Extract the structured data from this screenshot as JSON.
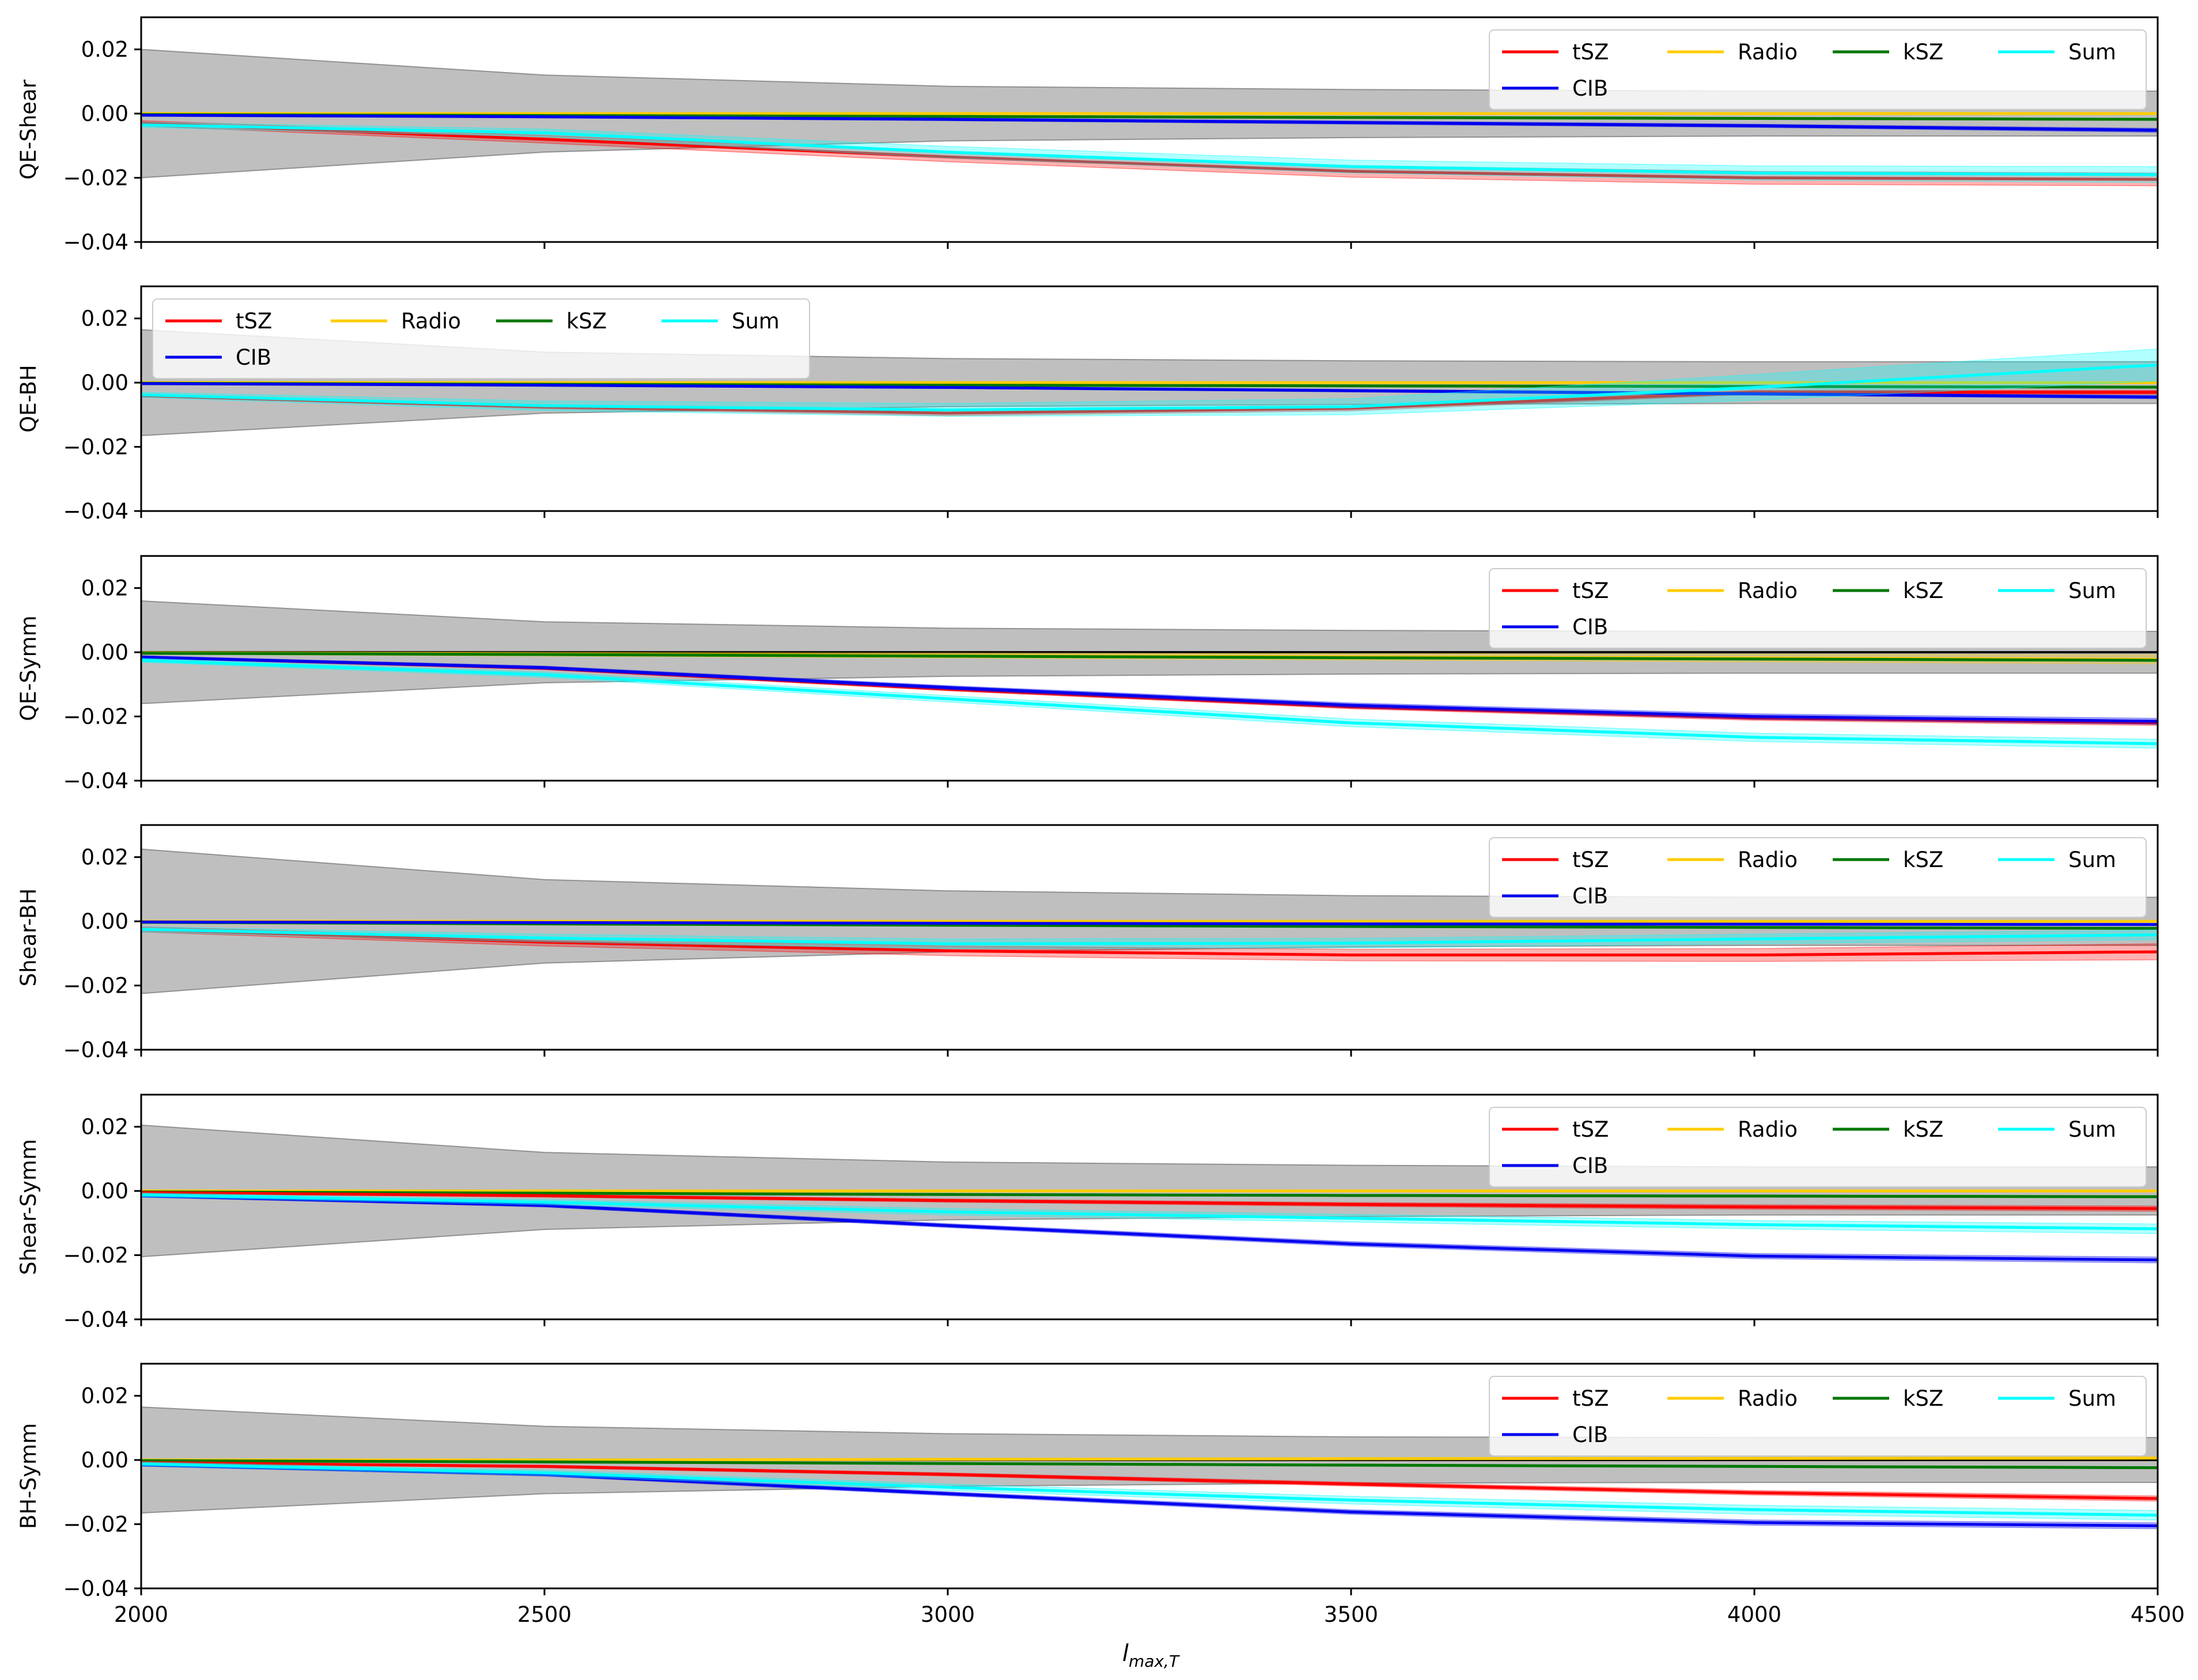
{
  "figure": {
    "xlabel": "l",
    "xlabel_sub": "max,T"
  },
  "chart_data": [
    {
      "type": "line",
      "ylabel": "QE-Shear",
      "x": [
        2000,
        2500,
        3000,
        3500,
        4000,
        4500
      ],
      "xlim": [
        2000,
        4500
      ],
      "ylim": [
        -0.04,
        0.03
      ],
      "xticks": [
        "2000",
        "2500",
        "3000",
        "3500",
        "4000",
        "4500"
      ],
      "yticks": [
        "0.02",
        "0.00",
        "−0.02",
        "−0.04"
      ],
      "ytick_values": [
        0.02,
        0.0,
        -0.02,
        -0.04
      ],
      "legend_position": "upper right",
      "error_band": [
        0.02,
        0.012,
        0.0085,
        0.0075,
        0.007,
        0.007
      ],
      "series": [
        {
          "name": "tSZ",
          "color": "#ff0000",
          "values": [
            -0.003,
            -0.008,
            -0.0135,
            -0.018,
            -0.02,
            -0.0205
          ],
          "band": [
            0.0008,
            0.0012,
            0.0015,
            0.0018,
            0.002,
            0.002
          ]
        },
        {
          "name": "CIB",
          "color": "#0000ee",
          "values": [
            -0.0005,
            -0.001,
            -0.0018,
            -0.0028,
            -0.0038,
            -0.0052
          ],
          "band": [
            0.0002,
            0.0003,
            0.0004,
            0.0005,
            0.0005,
            0.0006
          ]
        },
        {
          "name": "Radio",
          "color": "#ffcc00",
          "values": [
            0.0,
            0.0,
            0.0,
            0.0,
            0.0,
            0.0
          ],
          "band": [
            0.0002,
            0.0002,
            0.0002,
            0.0002,
            0.0002,
            0.0002
          ]
        },
        {
          "name": "kSZ",
          "color": "#007700",
          "values": [
            -0.0003,
            -0.0006,
            -0.0009,
            -0.0012,
            -0.0015,
            -0.0018
          ],
          "band": [
            0.0001,
            0.0001,
            0.0001,
            0.0001,
            0.0001,
            0.0001
          ]
        },
        {
          "name": "Sum",
          "color": "#00ffff",
          "values": [
            -0.0035,
            -0.006,
            -0.012,
            -0.0165,
            -0.0185,
            -0.019
          ],
          "band": [
            0.0008,
            0.0012,
            0.0018,
            0.002,
            0.0022,
            0.0025
          ]
        }
      ]
    },
    {
      "type": "line",
      "ylabel": "QE-BH",
      "x": [
        2000,
        2500,
        3000,
        3500,
        4000,
        4500
      ],
      "xlim": [
        2000,
        4500
      ],
      "ylim": [
        -0.04,
        0.03
      ],
      "xticks": [
        "2000",
        "2500",
        "3000",
        "3500",
        "4000",
        "4500"
      ],
      "yticks": [
        "0.02",
        "0.00",
        "−0.02",
        "−0.04"
      ],
      "ytick_values": [
        0.02,
        0.0,
        -0.02,
        -0.04
      ],
      "legend_position": "upper left",
      "error_band": [
        0.0165,
        0.0095,
        0.0075,
        0.0068,
        0.0065,
        0.0065
      ],
      "series": [
        {
          "name": "tSZ",
          "color": "#ff0000",
          "values": [
            -0.004,
            -0.0075,
            -0.0095,
            -0.008,
            -0.003,
            -0.003
          ],
          "band": [
            0.0004,
            0.0006,
            0.0008,
            0.0008,
            0.0006,
            0.0006
          ]
        },
        {
          "name": "CIB",
          "color": "#0000ee",
          "values": [
            -0.0003,
            -0.0008,
            -0.0015,
            -0.0025,
            -0.0035,
            -0.0045
          ],
          "band": [
            0.0002,
            0.0003,
            0.0003,
            0.0004,
            0.0004,
            0.0005
          ]
        },
        {
          "name": "Radio",
          "color": "#ffcc00",
          "values": [
            0.0,
            0.0,
            0.0,
            0.0,
            0.0,
            0.0
          ],
          "band": [
            0.0002,
            0.0002,
            0.0002,
            0.0002,
            0.0002,
            0.0002
          ]
        },
        {
          "name": "kSZ",
          "color": "#007700",
          "values": [
            -0.0002,
            -0.0005,
            -0.0008,
            -0.001,
            -0.0012,
            -0.0014
          ],
          "band": [
            0.0001,
            0.0001,
            0.0001,
            0.0001,
            0.0001,
            0.0001
          ]
        },
        {
          "name": "Sum",
          "color": "#00ffff",
          "values": [
            -0.0038,
            -0.0072,
            -0.0085,
            -0.0075,
            -0.0015,
            0.0055
          ],
          "band": [
            0.0008,
            0.0015,
            0.002,
            0.0025,
            0.004,
            0.005
          ]
        }
      ]
    },
    {
      "type": "line",
      "ylabel": "QE-Symm",
      "x": [
        2000,
        2500,
        3000,
        3500,
        4000,
        4500
      ],
      "xlim": [
        2000,
        4500
      ],
      "ylim": [
        -0.04,
        0.03
      ],
      "xticks": [
        "2000",
        "2500",
        "3000",
        "3500",
        "4000",
        "4500"
      ],
      "yticks": [
        "0.02",
        "0.00",
        "−0.02",
        "−0.04"
      ],
      "ytick_values": [
        0.02,
        0.0,
        -0.02,
        -0.04
      ],
      "legend_position": "upper right",
      "error_band": [
        0.016,
        0.0095,
        0.0075,
        0.0068,
        0.0065,
        0.0065
      ],
      "series": [
        {
          "name": "tSZ",
          "color": "#ff0000",
          "values": [
            -0.0015,
            -0.005,
            -0.0115,
            -0.017,
            -0.0205,
            -0.022
          ],
          "band": [
            0.0003,
            0.0004,
            0.0005,
            0.0006,
            0.0007,
            0.0008
          ]
        },
        {
          "name": "CIB",
          "color": "#0000ee",
          "values": [
            -0.0015,
            -0.0048,
            -0.011,
            -0.0165,
            -0.02,
            -0.0215
          ],
          "band": [
            0.0004,
            0.0005,
            0.0006,
            0.0007,
            0.0008,
            0.0009
          ]
        },
        {
          "name": "Radio",
          "color": "#ffcc00",
          "values": [
            -0.0002,
            -0.0006,
            -0.001,
            -0.0014,
            -0.0018,
            -0.0022
          ],
          "band": [
            0.0004,
            0.0006,
            0.0008,
            0.001,
            0.0012,
            0.0014
          ]
        },
        {
          "name": "kSZ",
          "color": "#007700",
          "values": [
            -0.0003,
            -0.0007,
            -0.0012,
            -0.0017,
            -0.0021,
            -0.0025
          ],
          "band": [
            0.0001,
            0.0001,
            0.0001,
            0.0001,
            0.0001,
            0.0001
          ]
        },
        {
          "name": "Sum",
          "color": "#00ffff",
          "values": [
            -0.0025,
            -0.007,
            -0.0145,
            -0.022,
            -0.0265,
            -0.0285
          ],
          "band": [
            0.0006,
            0.0008,
            0.001,
            0.0012,
            0.0013,
            0.0014
          ]
        }
      ]
    },
    {
      "type": "line",
      "ylabel": "Shear-BH",
      "x": [
        2000,
        2500,
        3000,
        3500,
        4000,
        4500
      ],
      "xlim": [
        2000,
        4500
      ],
      "ylim": [
        -0.04,
        0.03
      ],
      "xticks": [
        "2000",
        "2500",
        "3000",
        "3500",
        "4000",
        "4500"
      ],
      "yticks": [
        "0.02",
        "0.00",
        "−0.02",
        "−0.04"
      ],
      "ytick_values": [
        0.02,
        0.0,
        -0.02,
        -0.04
      ],
      "legend_position": "upper right",
      "error_band": [
        0.0225,
        0.013,
        0.0095,
        0.008,
        0.0075,
        0.0075
      ],
      "series": [
        {
          "name": "tSZ",
          "color": "#ff0000",
          "values": [
            -0.0025,
            -0.0065,
            -0.0092,
            -0.0105,
            -0.0105,
            -0.0095
          ],
          "band": [
            0.0008,
            0.0012,
            0.0015,
            0.0018,
            0.002,
            0.0025
          ]
        },
        {
          "name": "CIB",
          "color": "#0000ee",
          "values": [
            -0.0002,
            -0.0004,
            -0.0006,
            -0.0008,
            -0.0009,
            -0.001
          ],
          "band": [
            0.0001,
            0.0001,
            0.0001,
            0.0001,
            0.0001,
            0.0001
          ]
        },
        {
          "name": "Radio",
          "color": "#ffcc00",
          "values": [
            0.0,
            0.0,
            0.0,
            0.0,
            0.0,
            0.0
          ],
          "band": [
            0.0002,
            0.0002,
            0.0002,
            0.0002,
            0.0002,
            0.0002
          ]
        },
        {
          "name": "kSZ",
          "color": "#007700",
          "values": [
            -0.0003,
            -0.0008,
            -0.0012,
            -0.0016,
            -0.0019,
            -0.0022
          ],
          "band": [
            0.0001,
            0.0001,
            0.0001,
            0.0001,
            0.0001,
            0.0001
          ]
        },
        {
          "name": "Sum",
          "color": "#00ffff",
          "values": [
            -0.0025,
            -0.0052,
            -0.007,
            -0.0068,
            -0.0055,
            -0.0042
          ],
          "band": [
            0.0008,
            0.0012,
            0.0015,
            0.0015,
            0.0015,
            0.0015
          ]
        }
      ]
    },
    {
      "type": "line",
      "ylabel": "Shear-Symm",
      "x": [
        2000,
        2500,
        3000,
        3500,
        4000,
        4500
      ],
      "xlim": [
        2000,
        4500
      ],
      "ylim": [
        -0.04,
        0.03
      ],
      "xticks": [
        "2000",
        "2500",
        "3000",
        "3500",
        "4000",
        "4500"
      ],
      "yticks": [
        "0.02",
        "0.00",
        "−0.02",
        "−0.04"
      ],
      "ytick_values": [
        0.02,
        0.0,
        -0.02,
        -0.04
      ],
      "legend_position": "upper right",
      "error_band": [
        0.0205,
        0.012,
        0.009,
        0.008,
        0.0075,
        0.0075
      ],
      "series": [
        {
          "name": "tSZ",
          "color": "#ff0000",
          "values": [
            -0.0005,
            -0.0015,
            -0.003,
            -0.0042,
            -0.005,
            -0.0055
          ],
          "band": [
            0.0003,
            0.0004,
            0.0005,
            0.0006,
            0.0007,
            0.0008
          ]
        },
        {
          "name": "CIB",
          "color": "#0000ee",
          "values": [
            -0.0015,
            -0.0045,
            -0.0108,
            -0.0165,
            -0.0203,
            -0.0215
          ],
          "band": [
            0.0004,
            0.0005,
            0.0006,
            0.0007,
            0.0008,
            0.0009
          ]
        },
        {
          "name": "Radio",
          "color": "#ffcc00",
          "values": [
            0.0,
            0.0,
            0.0,
            0.0,
            0.0,
            0.0
          ],
          "band": [
            0.0002,
            0.0002,
            0.0002,
            0.0002,
            0.0002,
            0.0002
          ]
        },
        {
          "name": "kSZ",
          "color": "#007700",
          "values": [
            -0.0003,
            -0.0007,
            -0.0011,
            -0.0014,
            -0.0016,
            -0.0018
          ],
          "band": [
            0.0001,
            0.0001,
            0.0001,
            0.0001,
            0.0001,
            0.0001
          ]
        },
        {
          "name": "Sum",
          "color": "#00ffff",
          "values": [
            -0.0012,
            -0.0035,
            -0.0065,
            -0.0085,
            -0.0105,
            -0.0118
          ],
          "band": [
            0.0006,
            0.0008,
            0.001,
            0.0012,
            0.0013,
            0.0015
          ]
        }
      ]
    },
    {
      "type": "line",
      "ylabel": "BH-Symm",
      "x": [
        2000,
        2500,
        3000,
        3500,
        4000,
        4500
      ],
      "xlim": [
        2000,
        4500
      ],
      "ylim": [
        -0.04,
        0.03
      ],
      "xticks": [
        "2000",
        "2500",
        "3000",
        "3500",
        "4000",
        "4500"
      ],
      "yticks": [
        "0.02",
        "0.00",
        "−0.02",
        "−0.04"
      ],
      "ytick_values": [
        0.02,
        0.0,
        -0.02,
        -0.04
      ],
      "legend_position": "upper right",
      "error_band": [
        0.0165,
        0.0105,
        0.0082,
        0.0072,
        0.007,
        0.007
      ],
      "series": [
        {
          "name": "tSZ",
          "color": "#ff0000",
          "values": [
            -0.0008,
            -0.002,
            -0.0045,
            -0.0075,
            -0.0102,
            -0.012
          ],
          "band": [
            0.0003,
            0.0004,
            0.0005,
            0.0006,
            0.0007,
            0.0008
          ]
        },
        {
          "name": "CIB",
          "color": "#0000ee",
          "values": [
            -0.0015,
            -0.0045,
            -0.0105,
            -0.0162,
            -0.0195,
            -0.0205
          ],
          "band": [
            0.0004,
            0.0005,
            0.0006,
            0.0007,
            0.0008,
            0.0009
          ]
        },
        {
          "name": "Radio",
          "color": "#ffcc00",
          "values": [
            0.0,
            0.0,
            0.0002,
            0.0004,
            0.0005,
            0.0006
          ],
          "band": [
            0.0002,
            0.0002,
            0.0002,
            0.0002,
            0.0002,
            0.0002
          ]
        },
        {
          "name": "kSZ",
          "color": "#007700",
          "values": [
            -0.0002,
            -0.0006,
            -0.0011,
            -0.0016,
            -0.002,
            -0.0024
          ],
          "band": [
            0.0001,
            0.0001,
            0.0001,
            0.0001,
            0.0001,
            0.0001
          ]
        },
        {
          "name": "Sum",
          "color": "#00ffff",
          "values": [
            -0.0012,
            -0.004,
            -0.0085,
            -0.0125,
            -0.0155,
            -0.0172
          ],
          "band": [
            0.0006,
            0.0008,
            0.001,
            0.0012,
            0.0014,
            0.0015
          ]
        }
      ]
    }
  ]
}
